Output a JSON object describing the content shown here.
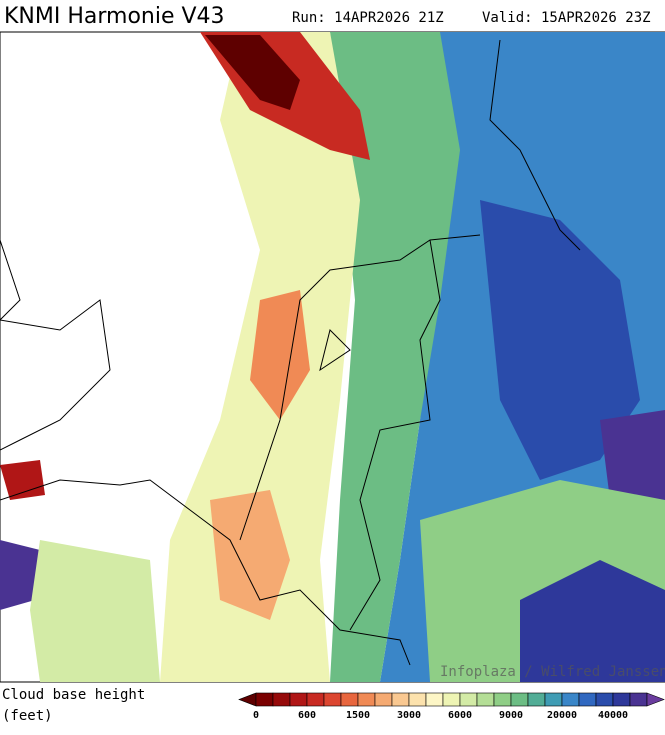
{
  "header": {
    "title": "KNMI Harmonie V43",
    "run": "Run: 14APR2026 21Z",
    "valid": "Valid: 15APR2026 23Z"
  },
  "credit": "Infoplaza / Wilfred Janssen",
  "legend": {
    "title_line1": "Cloud base height",
    "title_line2": "(feet)",
    "colors": [
      "#5e0000",
      "#7a0000",
      "#960a0a",
      "#b01616",
      "#c82a22",
      "#dc4630",
      "#e8663e",
      "#f08a55",
      "#f5aa72",
      "#f9c891",
      "#fce2ad",
      "#fdf6c6",
      "#eef4b4",
      "#d3eba6",
      "#b4de96",
      "#8fce86",
      "#6cbd84",
      "#52ad96",
      "#3f9cb4",
      "#3a86c8",
      "#3068c0",
      "#2a4cab",
      "#2e389a",
      "#4a3392",
      "#6a3c9e"
    ],
    "labels": [
      0,
      600,
      1500,
      3000,
      6000,
      9000,
      20000,
      40000
    ]
  }
}
